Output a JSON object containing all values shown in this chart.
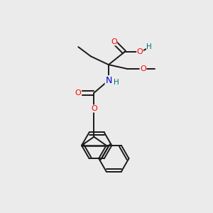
{
  "background_color": "#ebebeb",
  "bond_color": "#1a1a1a",
  "atom_colors": {
    "O": "#ff0000",
    "N": "#0000cc",
    "H_acid": "#007070",
    "C": "#1a1a1a"
  },
  "figsize": [
    3.0,
    3.0
  ],
  "dpi": 100
}
